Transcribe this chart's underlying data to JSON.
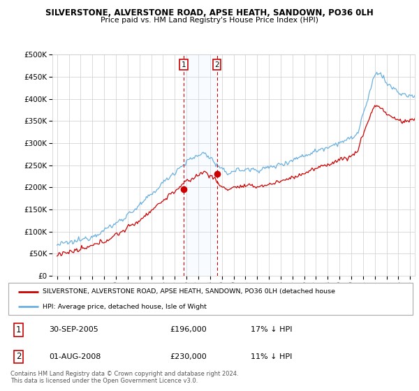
{
  "title1": "SILVERSTONE, ALVERSTONE ROAD, APSE HEATH, SANDOWN, PO36 0LH",
  "title2": "Price paid vs. HM Land Registry's House Price Index (HPI)",
  "ylabel_ticks": [
    "£0",
    "£50K",
    "£100K",
    "£150K",
    "£200K",
    "£250K",
    "£300K",
    "£350K",
    "£400K",
    "£450K",
    "£500K"
  ],
  "ytick_vals": [
    0,
    50000,
    100000,
    150000,
    200000,
    250000,
    300000,
    350000,
    400000,
    450000,
    500000
  ],
  "xlim_start": 1994.6,
  "xlim_end": 2025.4,
  "ylim": [
    0,
    500000
  ],
  "marker1_x": 2005.75,
  "marker1_price": 196000,
  "marker2_x": 2008.58,
  "marker2_price": 230000,
  "legend_line1": "SILVERSTONE, ALVERSTONE ROAD, APSE HEATH, SANDOWN, PO36 0LH (detached house",
  "legend_line2": "HPI: Average price, detached house, Isle of Wight",
  "footer": "Contains HM Land Registry data © Crown copyright and database right 2024.\nThis data is licensed under the Open Government Licence v3.0.",
  "hpi_color": "#6ab0e0",
  "price_color": "#cc0000",
  "bg_color": "#ffffff",
  "plot_bg_color": "#ffffff",
  "grid_color": "#cccccc",
  "shade_color": "#ddeeff"
}
